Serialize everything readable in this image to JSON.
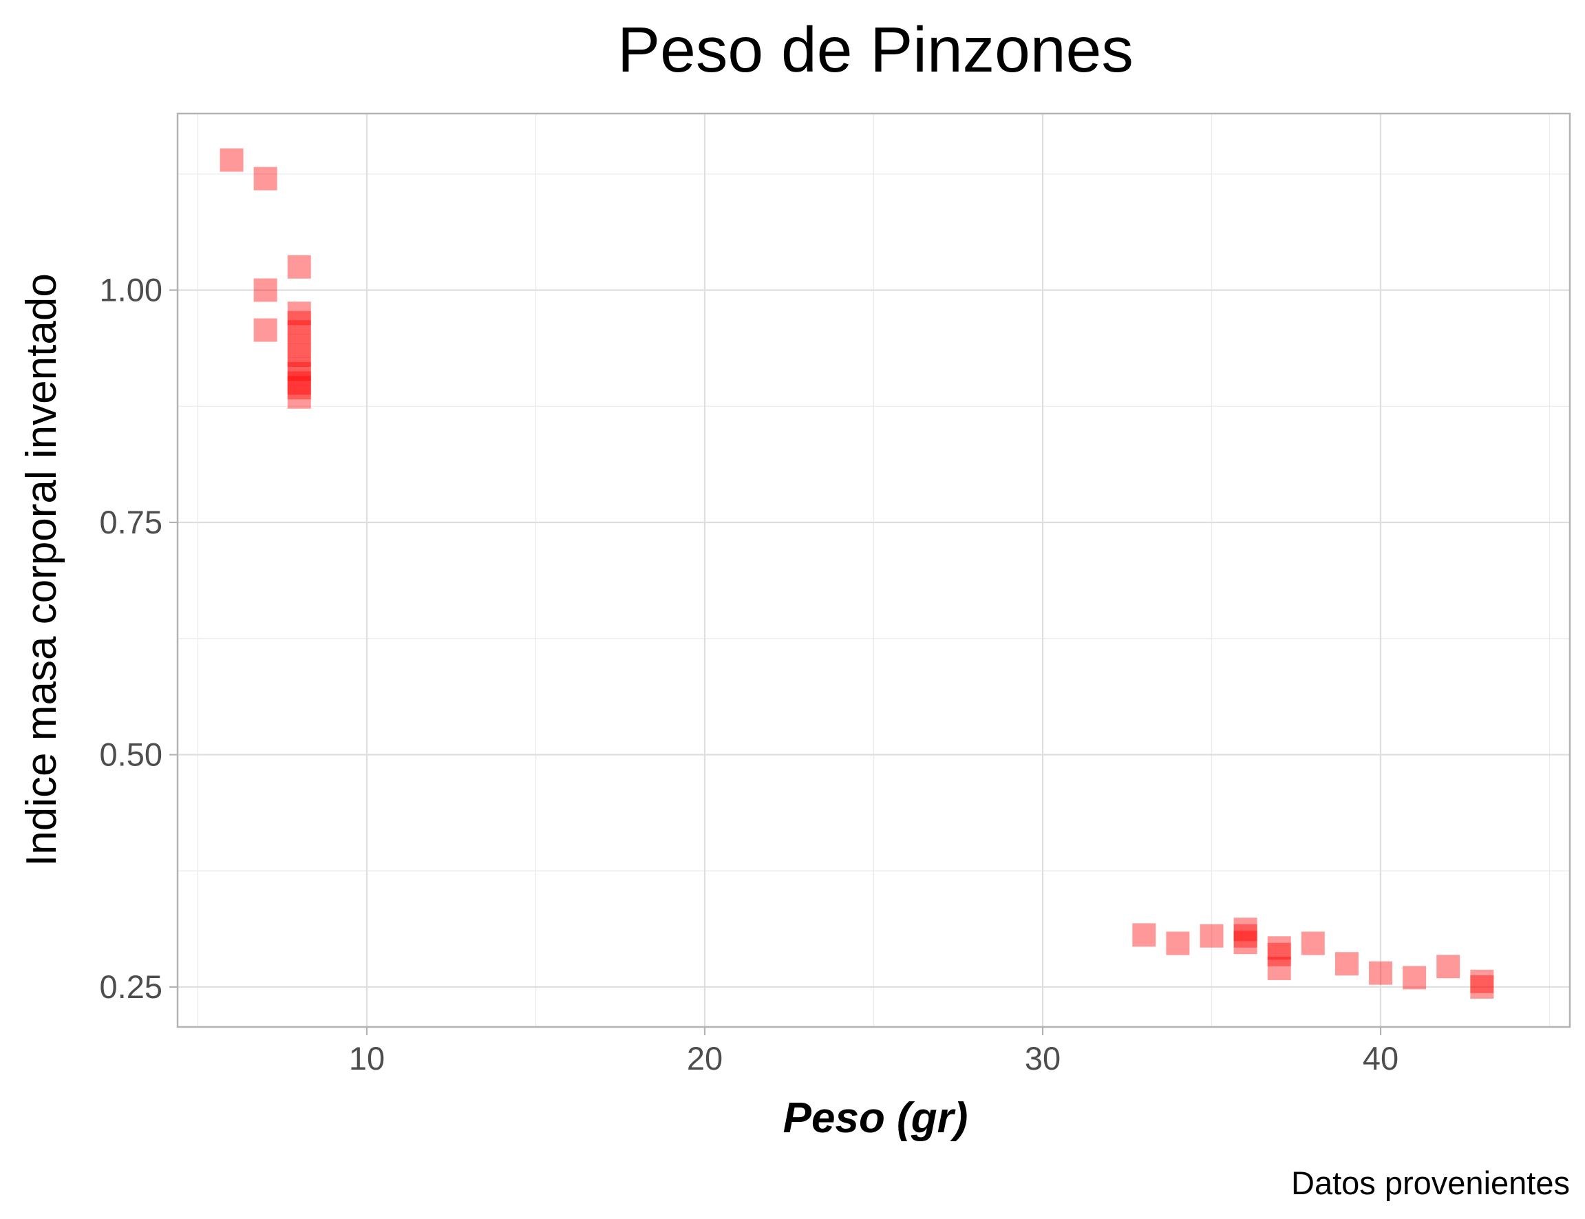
{
  "chart_data": {
    "type": "scatter",
    "title": "Peso de Pinzones",
    "xlabel": "Peso (gr)",
    "ylabel": "Indice masa corporal inventado",
    "caption": "Datos provenientes",
    "xlim": [
      4.4,
      45.6
    ],
    "ylim": [
      0.207,
      1.19
    ],
    "x_ticks": [
      10,
      20,
      30,
      40
    ],
    "x_tick_labels": [
      "10",
      "20",
      "30",
      "40"
    ],
    "y_ticks": [
      0.25,
      0.5,
      0.75,
      1.0
    ],
    "y_tick_labels": [
      "0.25",
      "0.50",
      "0.75",
      "1.00"
    ],
    "grid": true,
    "marker": "square",
    "marker_color": "#ff0000",
    "marker_opacity": 0.4,
    "series": [
      {
        "points": [
          {
            "x": 6,
            "y": 1.14
          },
          {
            "x": 7,
            "y": 1.12
          },
          {
            "x": 7,
            "y": 1.0
          },
          {
            "x": 7,
            "y": 0.957
          },
          {
            "x": 8,
            "y": 1.025
          },
          {
            "x": 8,
            "y": 0.975
          },
          {
            "x": 8,
            "y": 0.965
          },
          {
            "x": 8,
            "y": 0.955
          },
          {
            "x": 8,
            "y": 0.94
          },
          {
            "x": 8,
            "y": 0.93
          },
          {
            "x": 8,
            "y": 0.915
          },
          {
            "x": 8,
            "y": 0.91
          },
          {
            "x": 8,
            "y": 0.9
          },
          {
            "x": 8,
            "y": 0.895
          },
          {
            "x": 8,
            "y": 0.885
          },
          {
            "x": 33,
            "y": 0.306
          },
          {
            "x": 34,
            "y": 0.297
          },
          {
            "x": 35,
            "y": 0.305
          },
          {
            "x": 36,
            "y": 0.312
          },
          {
            "x": 36,
            "y": 0.305
          },
          {
            "x": 36,
            "y": 0.298
          },
          {
            "x": 37,
            "y": 0.292
          },
          {
            "x": 37,
            "y": 0.285
          },
          {
            "x": 37,
            "y": 0.27
          },
          {
            "x": 38,
            "y": 0.297
          },
          {
            "x": 39,
            "y": 0.275
          },
          {
            "x": 40,
            "y": 0.265
          },
          {
            "x": 41,
            "y": 0.26
          },
          {
            "x": 42,
            "y": 0.272
          },
          {
            "x": 43,
            "y": 0.256
          },
          {
            "x": 43,
            "y": 0.25
          }
        ]
      }
    ]
  }
}
